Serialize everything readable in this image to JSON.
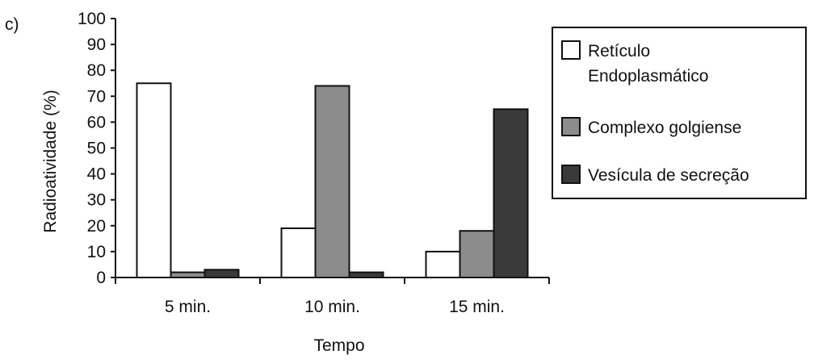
{
  "panel_label": "c)",
  "chart_data": {
    "type": "bar",
    "title": "",
    "xlabel": "Tempo",
    "ylabel": "Radioatividade (%)",
    "ylim": [
      0,
      100
    ],
    "yticks": [
      0,
      10,
      20,
      30,
      40,
      50,
      60,
      70,
      80,
      90,
      100
    ],
    "categories": [
      "5 min.",
      "10 min.",
      "15 min."
    ],
    "series": [
      {
        "name": "Retículo Endoplasmático",
        "name_lines": [
          "Retículo",
          "Endoplasmático"
        ],
        "color": "#ffffff",
        "values": [
          75,
          19,
          10
        ]
      },
      {
        "name": "Complexo golgiense",
        "name_lines": [
          "Complexo golgiense"
        ],
        "color": "#8c8c8c",
        "values": [
          2,
          74,
          18
        ]
      },
      {
        "name": "Vesícula de secreção",
        "name_lines": [
          "Vesícula de secreção"
        ],
        "color": "#3a3a3a",
        "values": [
          3,
          2,
          65
        ]
      }
    ],
    "grid": false,
    "legend_position": "right"
  }
}
